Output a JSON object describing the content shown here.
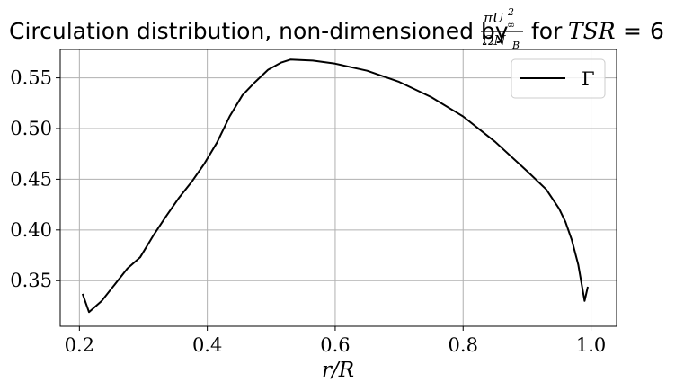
{
  "chart_data": {
    "type": "line",
    "title": "Circulation distribution, non-dimensioned by πU∞²/ΩN_B for TSR = 6",
    "title_parts": {
      "prefix": "Circulation distribution, non-dimensioned by",
      "frac_num": "πU",
      "frac_num_sup": "2",
      "frac_num_sub": "∞",
      "frac_den": "ΩN",
      "frac_den_sub": "B",
      "suffix": "for",
      "tsr_label": "TSR",
      "tsr_eq": "=",
      "tsr_value": "6"
    },
    "xlabel": "r/R",
    "ylabel": "",
    "xlim": [
      0.17,
      1.04
    ],
    "ylim": [
      0.305,
      0.578
    ],
    "xticks": [
      0.2,
      0.4,
      0.6,
      0.8,
      1.0
    ],
    "xtick_labels": [
      "0.2",
      "0.4",
      "0.6",
      "0.8",
      "1.0"
    ],
    "yticks": [
      0.35,
      0.4,
      0.45,
      0.5,
      0.55
    ],
    "ytick_labels": [
      "0.35",
      "0.40",
      "0.45",
      "0.50",
      "0.55"
    ],
    "grid": true,
    "legend_position": "top-right",
    "series": [
      {
        "name": "Γ",
        "color": "#000000",
        "x": [
          0.205,
          0.215,
          0.235,
          0.255,
          0.275,
          0.295,
          0.315,
          0.335,
          0.355,
          0.375,
          0.395,
          0.415,
          0.435,
          0.455,
          0.475,
          0.495,
          0.515,
          0.53,
          0.545,
          0.565,
          0.6,
          0.65,
          0.7,
          0.75,
          0.8,
          0.85,
          0.9,
          0.93,
          0.95,
          0.96,
          0.97,
          0.98,
          0.99,
          0.995
        ],
        "y": [
          0.337,
          0.319,
          0.33,
          0.346,
          0.362,
          0.373,
          0.394,
          0.413,
          0.431,
          0.447,
          0.465,
          0.486,
          0.512,
          0.533,
          0.546,
          0.558,
          0.565,
          0.568,
          0.5675,
          0.567,
          0.564,
          0.557,
          0.546,
          0.531,
          0.512,
          0.487,
          0.458,
          0.44,
          0.421,
          0.408,
          0.39,
          0.366,
          0.33,
          0.344
        ]
      }
    ]
  }
}
